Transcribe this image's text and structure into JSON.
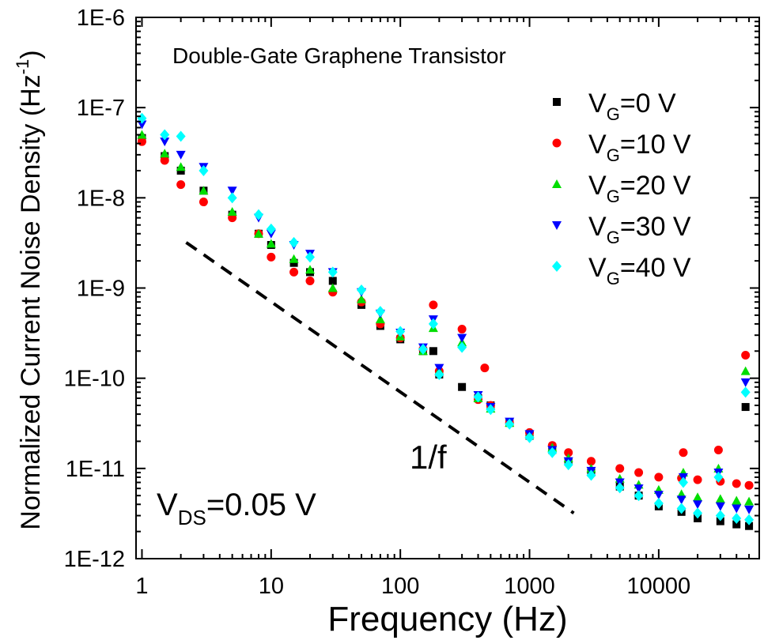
{
  "chart_data": {
    "type": "scatter",
    "title": "Double-Gate Graphene Transistor",
    "xlabel": "Frequency (Hz)",
    "ylabel": {
      "main": "Normalized Current Noise Density (Hz",
      "sup": "-1",
      "close": ")"
    },
    "x_scale": "log",
    "y_scale": "log",
    "xlim": [
      0.9,
      60000
    ],
    "ylim": [
      1e-12,
      1e-06
    ],
    "x_ticks": [
      {
        "value": 1,
        "label": "1"
      },
      {
        "value": 10,
        "label": "10"
      },
      {
        "value": 100,
        "label": "100"
      },
      {
        "value": 1000,
        "label": "1000"
      },
      {
        "value": 10000,
        "label": "10000"
      }
    ],
    "y_ticks": [
      {
        "value": 1e-12,
        "label": "1E-12"
      },
      {
        "value": 1e-11,
        "label": "1E-11"
      },
      {
        "value": 1e-10,
        "label": "1E-10"
      },
      {
        "value": 1e-09,
        "label": "1E-9"
      },
      {
        "value": 1e-08,
        "label": "1E-8"
      },
      {
        "value": 1e-07,
        "label": "1E-7"
      },
      {
        "value": 1e-06,
        "label": "1E-6"
      }
    ],
    "legend_position": "top-right",
    "series": [
      {
        "name": "VG=0 V",
        "label_parts": {
          "main": "V",
          "sub": "G",
          "rest": "=0 V"
        },
        "marker": "square",
        "color": "#000000",
        "points": [
          [
            1,
            4.6e-08
          ],
          [
            1.5,
            2.9e-08
          ],
          [
            2,
            2e-08
          ],
          [
            3,
            1.2e-08
          ],
          [
            5,
            6.5e-09
          ],
          [
            8,
            4e-09
          ],
          [
            10,
            3e-09
          ],
          [
            15,
            1.9e-09
          ],
          [
            20,
            1.5e-09
          ],
          [
            30,
            1.2e-09
          ],
          [
            50,
            6.5e-10
          ],
          [
            70,
            3.8e-10
          ],
          [
            100,
            2.7e-10
          ],
          [
            150,
            2e-10
          ],
          [
            180,
            2e-10
          ],
          [
            200,
            1.1e-10
          ],
          [
            300,
            8e-11
          ],
          [
            400,
            6e-11
          ],
          [
            500,
            5e-11
          ],
          [
            700,
            3.2e-11
          ],
          [
            1000,
            2.3e-11
          ],
          [
            1500,
            1.6e-11
          ],
          [
            2000,
            1.2e-11
          ],
          [
            3000,
            9e-12
          ],
          [
            5000,
            6.3e-12
          ],
          [
            7000,
            5e-12
          ],
          [
            10000,
            3.8e-12
          ],
          [
            15000,
            3.3e-12
          ],
          [
            20000,
            2.8e-12
          ],
          [
            30000,
            2.6e-12
          ],
          [
            40000,
            2.4e-12
          ],
          [
            50000,
            2.3e-12
          ],
          [
            47000,
            4.8e-11
          ]
        ]
      },
      {
        "name": "VG=10 V",
        "label_parts": {
          "main": "V",
          "sub": "G",
          "rest": "=10 V"
        },
        "marker": "circle",
        "color": "#ff0000",
        "points": [
          [
            1,
            4.2e-08
          ],
          [
            1.5,
            2.6e-08
          ],
          [
            2,
            1.4e-08
          ],
          [
            3,
            9e-09
          ],
          [
            5,
            6e-09
          ],
          [
            8,
            4e-09
          ],
          [
            10,
            2.2e-09
          ],
          [
            15,
            1.5e-09
          ],
          [
            20,
            1.2e-09
          ],
          [
            30,
            9e-10
          ],
          [
            50,
            7e-10
          ],
          [
            70,
            4e-10
          ],
          [
            100,
            2.8e-10
          ],
          [
            150,
            2.1e-10
          ],
          [
            180,
            6.5e-10
          ],
          [
            200,
            1.2e-10
          ],
          [
            300,
            3.5e-10
          ],
          [
            400,
            5.8e-11
          ],
          [
            450,
            1.3e-10
          ],
          [
            500,
            5e-11
          ],
          [
            700,
            3.2e-11
          ],
          [
            1000,
            2.5e-11
          ],
          [
            1500,
            1.8e-11
          ],
          [
            2000,
            1.5e-11
          ],
          [
            3000,
            1.2e-11
          ],
          [
            5000,
            1e-11
          ],
          [
            7000,
            9e-12
          ],
          [
            10000,
            8e-12
          ],
          [
            15000,
            7.8e-12
          ],
          [
            15500,
            1.5e-11
          ],
          [
            20000,
            7.5e-12
          ],
          [
            30000,
            7.2e-12
          ],
          [
            29000,
            1.6e-11
          ],
          [
            40000,
            6.8e-12
          ],
          [
            50000,
            6.5e-12
          ],
          [
            47000,
            1.8e-10
          ]
        ]
      },
      {
        "name": "VG=20 V",
        "label_parts": {
          "main": "V",
          "sub": "G",
          "rest": "=20 V"
        },
        "marker": "triangle-up",
        "color": "#00dd00",
        "points": [
          [
            1,
            5e-08
          ],
          [
            1.5,
            3.1e-08
          ],
          [
            2,
            2.2e-08
          ],
          [
            3,
            1.2e-08
          ],
          [
            5,
            7e-09
          ],
          [
            8,
            4e-09
          ],
          [
            10,
            3.1e-09
          ],
          [
            15,
            2.1e-09
          ],
          [
            20,
            1.6e-09
          ],
          [
            30,
            1e-09
          ],
          [
            50,
            7.5e-10
          ],
          [
            70,
            4.5e-10
          ],
          [
            100,
            2.9e-10
          ],
          [
            150,
            2e-10
          ],
          [
            180,
            3.6e-10
          ],
          [
            200,
            1.2e-10
          ],
          [
            300,
            2.5e-10
          ],
          [
            400,
            6e-11
          ],
          [
            500,
            4.6e-11
          ],
          [
            700,
            3.2e-11
          ],
          [
            1000,
            2.4e-11
          ],
          [
            1500,
            1.7e-11
          ],
          [
            2000,
            1.3e-11
          ],
          [
            3000,
            1e-11
          ],
          [
            5000,
            7.7e-12
          ],
          [
            7000,
            6.6e-12
          ],
          [
            10000,
            5.8e-12
          ],
          [
            15000,
            5.2e-12
          ],
          [
            15500,
            9e-12
          ],
          [
            20000,
            4.8e-12
          ],
          [
            30000,
            4.6e-12
          ],
          [
            29000,
            1e-11
          ],
          [
            40000,
            4.4e-12
          ],
          [
            50000,
            4.3e-12
          ],
          [
            47000,
            1.2e-10
          ]
        ]
      },
      {
        "name": "VG=30 V",
        "label_parts": {
          "main": "V",
          "sub": "G",
          "rest": "=30 V"
        },
        "marker": "triangle-down",
        "color": "#0000ff",
        "points": [
          [
            1,
            6.5e-08
          ],
          [
            1.5,
            4.2e-08
          ],
          [
            2,
            3e-08
          ],
          [
            3,
            2.2e-08
          ],
          [
            5,
            1.2e-08
          ],
          [
            8,
            6e-09
          ],
          [
            10,
            4e-09
          ],
          [
            15,
            3e-09
          ],
          [
            20,
            2.4e-09
          ],
          [
            30,
            1.5e-09
          ],
          [
            50,
            9e-10
          ],
          [
            70,
            5.2e-10
          ],
          [
            100,
            3.2e-10
          ],
          [
            150,
            2.2e-10
          ],
          [
            180,
            4.5e-10
          ],
          [
            200,
            1.3e-10
          ],
          [
            300,
            2.8e-10
          ],
          [
            400,
            6.5e-11
          ],
          [
            500,
            4.8e-11
          ],
          [
            700,
            3.3e-11
          ],
          [
            1000,
            2.4e-11
          ],
          [
            1500,
            1.6e-11
          ],
          [
            2000,
            1.2e-11
          ],
          [
            3000,
            9.4e-12
          ],
          [
            5000,
            7e-12
          ],
          [
            7000,
            6e-12
          ],
          [
            10000,
            5.1e-12
          ],
          [
            15000,
            4.5e-12
          ],
          [
            15500,
            8e-12
          ],
          [
            20000,
            4e-12
          ],
          [
            30000,
            3.8e-12
          ],
          [
            29000,
            9e-12
          ],
          [
            40000,
            3.6e-12
          ],
          [
            50000,
            3.5e-12
          ],
          [
            47000,
            9e-11
          ]
        ]
      },
      {
        "name": "VG=40 V",
        "label_parts": {
          "main": "V",
          "sub": "G",
          "rest": "=40 V"
        },
        "marker": "diamond",
        "color": "#00ffff",
        "points": [
          [
            1,
            7.6e-08
          ],
          [
            1.5,
            5e-08
          ],
          [
            2,
            4.8e-08
          ],
          [
            3,
            2e-08
          ],
          [
            5,
            1e-08
          ],
          [
            8,
            6.5e-09
          ],
          [
            10,
            4.5e-09
          ],
          [
            15,
            3.2e-09
          ],
          [
            20,
            2.2e-09
          ],
          [
            30,
            1.5e-09
          ],
          [
            50,
            9.5e-10
          ],
          [
            70,
            5.5e-10
          ],
          [
            100,
            3.3e-10
          ],
          [
            150,
            2.1e-10
          ],
          [
            180,
            4e-10
          ],
          [
            200,
            1.1e-10
          ],
          [
            300,
            2.2e-10
          ],
          [
            400,
            6.2e-11
          ],
          [
            500,
            4.5e-11
          ],
          [
            700,
            3.1e-11
          ],
          [
            1000,
            2.2e-11
          ],
          [
            1500,
            1.5e-11
          ],
          [
            2000,
            1.1e-11
          ],
          [
            3000,
            8.4e-12
          ],
          [
            5000,
            6.1e-12
          ],
          [
            7000,
            5e-12
          ],
          [
            10000,
            4.1e-12
          ],
          [
            15000,
            3.6e-12
          ],
          [
            15500,
            7e-12
          ],
          [
            20000,
            3.2e-12
          ],
          [
            30000,
            3e-12
          ],
          [
            29000,
            8e-12
          ],
          [
            40000,
            2.8e-12
          ],
          [
            50000,
            2.7e-12
          ],
          [
            47000,
            7e-11
          ]
        ]
      }
    ],
    "reference_line": {
      "label": "1/f",
      "x": [
        2.2,
        2200
      ],
      "y": [
        3.2e-09,
        3.2e-12
      ],
      "style": "dashed",
      "color": "#000000"
    },
    "annotation": {
      "main": "V",
      "sub": "DS",
      "rest": "=0.05 V"
    }
  }
}
